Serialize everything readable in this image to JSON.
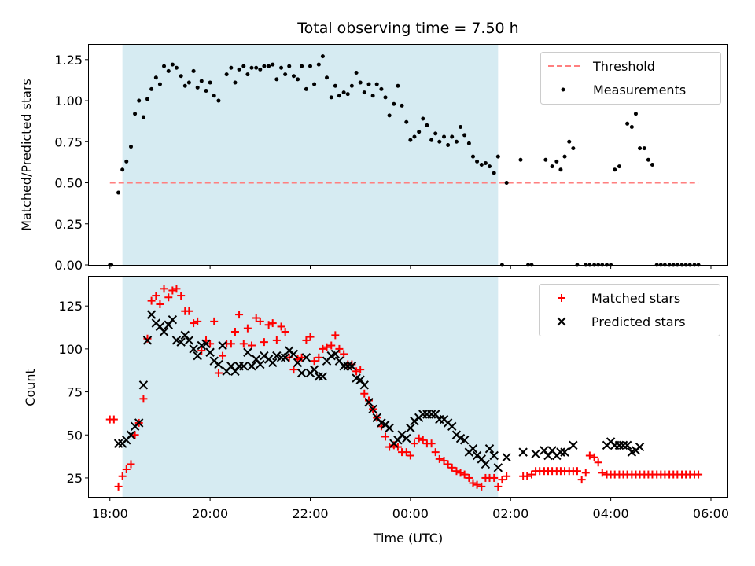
{
  "chart_data": [
    {
      "type": "scatter",
      "title": "Total observing time = 7.50 h",
      "xlabel": "",
      "ylabel": "Matched/Predicted stars",
      "ylim": [
        0,
        1.34
      ],
      "yticks": [
        "0.00",
        "0.25",
        "0.50",
        "0.75",
        "1.00",
        "1.25"
      ],
      "ytick_values": [
        0,
        0.25,
        0.5,
        0.75,
        1.0,
        1.25
      ],
      "observing_window": [
        18.25,
        25.75
      ],
      "shade_color": "#add8e6",
      "legend_position": "top-right",
      "threshold": {
        "name": "Threshold",
        "value": 0.5,
        "x_range": [
          18.0,
          29.75
        ],
        "color": "#ff7f7f"
      },
      "series": [
        {
          "name": "Measurements",
          "color": "#000000",
          "x": [
            18.0,
            18.03,
            18.17,
            18.25,
            18.33,
            18.42,
            18.5,
            18.58,
            18.67,
            18.75,
            18.83,
            18.92,
            19.0,
            19.08,
            19.17,
            19.25,
            19.33,
            19.42,
            19.5,
            19.58,
            19.67,
            19.75,
            19.83,
            19.92,
            20.0,
            20.08,
            20.17,
            20.33,
            20.42,
            20.5,
            20.58,
            20.67,
            20.75,
            20.83,
            20.92,
            21.0,
            21.08,
            21.17,
            21.25,
            21.33,
            21.42,
            21.5,
            21.58,
            21.67,
            21.75,
            21.83,
            21.92,
            22.0,
            22.08,
            22.17,
            22.25,
            22.33,
            22.42,
            22.5,
            22.58,
            22.67,
            22.75,
            22.83,
            22.92,
            23.0,
            23.08,
            23.17,
            23.25,
            23.33,
            23.42,
            23.5,
            23.58,
            23.67,
            23.75,
            23.83,
            23.92,
            24.0,
            24.08,
            24.17,
            24.25,
            24.33,
            24.42,
            24.5,
            24.58,
            24.67,
            24.75,
            24.83,
            24.92,
            25.0,
            25.08,
            25.17,
            25.25,
            25.33,
            25.42,
            25.5,
            25.58,
            25.67,
            25.75,
            25.83,
            25.92,
            26.2,
            26.35,
            26.42,
            26.7,
            26.83,
            26.92,
            27.0,
            27.08,
            27.17,
            27.25,
            27.33,
            27.5,
            27.58,
            27.67,
            27.75,
            27.83,
            27.92,
            28.0,
            28.08,
            28.17,
            28.33,
            28.42,
            28.5,
            28.58,
            28.67,
            28.75,
            28.83,
            28.92,
            29.0,
            29.08,
            29.17,
            29.25,
            29.33,
            29.42,
            29.5,
            29.58,
            29.67,
            29.75
          ],
          "y": [
            0.0,
            0.0,
            0.44,
            0.58,
            0.63,
            0.72,
            0.92,
            1.0,
            0.9,
            1.01,
            1.07,
            1.14,
            1.1,
            1.21,
            1.18,
            1.22,
            1.2,
            1.15,
            1.09,
            1.11,
            1.18,
            1.08,
            1.12,
            1.06,
            1.11,
            1.03,
            1.0,
            1.16,
            1.2,
            1.11,
            1.19,
            1.21,
            1.16,
            1.2,
            1.2,
            1.19,
            1.21,
            1.21,
            1.22,
            1.13,
            1.2,
            1.16,
            1.21,
            1.15,
            1.13,
            1.21,
            1.07,
            1.21,
            1.1,
            1.22,
            1.27,
            1.14,
            1.02,
            1.09,
            1.03,
            1.05,
            1.04,
            1.09,
            1.17,
            1.11,
            1.05,
            1.1,
            1.03,
            1.1,
            1.07,
            1.02,
            0.91,
            0.98,
            1.09,
            0.97,
            0.87,
            0.76,
            0.78,
            0.81,
            0.89,
            0.85,
            0.76,
            0.8,
            0.75,
            0.78,
            0.73,
            0.78,
            0.75,
            0.84,
            0.79,
            0.74,
            0.66,
            0.63,
            0.61,
            0.62,
            0.6,
            0.56,
            0.66,
            0.0,
            0.5,
            0.64,
            0.0,
            0.0,
            0.64,
            0.6,
            0.63,
            0.58,
            0.66,
            0.75,
            0.71,
            0.0,
            0.0,
            0.0,
            0.0,
            0.0,
            0.0,
            0.0,
            0.0,
            0.58,
            0.6,
            0.86,
            0.84,
            0.92,
            0.71,
            0.71,
            0.64,
            0.61,
            0.0,
            0.0,
            0.0,
            0.0,
            0.0,
            0.0,
            0.0,
            0.0,
            0.0,
            0.0,
            0.0
          ]
        }
      ],
      "legend": [
        "Threshold",
        "Measurements"
      ]
    },
    {
      "type": "scatter",
      "title": "",
      "xlabel": "Time (UTC)",
      "ylabel": "Count",
      "ylim": [
        14,
        142
      ],
      "yticks": [
        "25",
        "50",
        "75",
        "100",
        "125"
      ],
      "ytick_values": [
        25,
        50,
        75,
        100,
        125
      ],
      "xlim": [
        17.58,
        30.33
      ],
      "xticks": [
        "18:00",
        "20:00",
        "22:00",
        "00:00",
        "02:00",
        "04:00",
        "06:00"
      ],
      "xtick_values": [
        18,
        20,
        22,
        24,
        26,
        28,
        30
      ],
      "observing_window": [
        18.25,
        25.75
      ],
      "shade_color": "#add8e6",
      "legend_position": "top-right",
      "series": [
        {
          "name": "Matched stars",
          "marker": "+",
          "color": "#ff0000",
          "x": [
            18.0,
            18.08,
            18.17,
            18.25,
            18.33,
            18.42,
            18.5,
            18.58,
            18.67,
            18.75,
            18.83,
            18.92,
            19.0,
            19.08,
            19.17,
            19.25,
            19.33,
            19.42,
            19.5,
            19.58,
            19.67,
            19.75,
            19.83,
            19.92,
            20.0,
            20.08,
            20.17,
            20.25,
            20.33,
            20.42,
            20.5,
            20.58,
            20.67,
            20.75,
            20.83,
            20.92,
            21.0,
            21.08,
            21.17,
            21.25,
            21.33,
            21.42,
            21.5,
            21.58,
            21.67,
            21.75,
            21.83,
            21.92,
            22.0,
            22.08,
            22.17,
            22.25,
            22.33,
            22.42,
            22.5,
            22.58,
            22.67,
            22.75,
            22.83,
            22.92,
            23.0,
            23.08,
            23.17,
            23.25,
            23.33,
            23.42,
            23.5,
            23.58,
            23.67,
            23.75,
            23.83,
            23.92,
            24.0,
            24.08,
            24.17,
            24.25,
            24.33,
            24.42,
            24.5,
            24.58,
            24.67,
            24.75,
            24.83,
            24.92,
            25.0,
            25.08,
            25.17,
            25.25,
            25.33,
            25.42,
            25.5,
            25.58,
            25.67,
            25.75,
            25.83,
            25.92,
            26.25,
            26.33,
            26.42,
            26.5,
            26.58,
            26.67,
            26.75,
            26.83,
            26.92,
            27.0,
            27.08,
            27.17,
            27.25,
            27.33,
            27.42,
            27.5,
            27.58,
            27.67,
            27.75,
            27.83,
            27.92,
            28.0,
            28.08,
            28.17,
            28.25,
            28.33,
            28.42,
            28.5,
            28.58,
            28.67,
            28.75,
            28.83,
            28.92,
            29.0,
            29.08,
            29.17,
            29.25,
            29.33,
            29.42,
            29.5,
            29.58,
            29.67,
            29.75
          ],
          "y": [
            59,
            59,
            20,
            26,
            30,
            33,
            50,
            57,
            71,
            106,
            128,
            131,
            126,
            135,
            130,
            134,
            135,
            131,
            122,
            122,
            115,
            116,
            99,
            105,
            103,
            116,
            86,
            96,
            103,
            103,
            110,
            120,
            103,
            112,
            102,
            118,
            116,
            104,
            114,
            115,
            105,
            113,
            110,
            95,
            88,
            94,
            95,
            105,
            107,
            93,
            95,
            100,
            101,
            102,
            108,
            100,
            97,
            91,
            91,
            87,
            88,
            74,
            70,
            65,
            60,
            55,
            49,
            43,
            44,
            43,
            40,
            40,
            38,
            45,
            48,
            47,
            45,
            45,
            40,
            36,
            35,
            33,
            31,
            29,
            28,
            27,
            25,
            22,
            21,
            20,
            25,
            25,
            25,
            20,
            24,
            26,
            26,
            26,
            27,
            29,
            29,
            29,
            29,
            29,
            29,
            29,
            29,
            29,
            29,
            29,
            24,
            28,
            38,
            37,
            34,
            28,
            27,
            27,
            27,
            27,
            27,
            27,
            27,
            27,
            27,
            27,
            27,
            27,
            27,
            27,
            27,
            27,
            27,
            27,
            27,
            27,
            27,
            27,
            27
          ]
        },
        {
          "name": "Predicted stars",
          "marker": "x",
          "color": "#000000",
          "x": [
            18.17,
            18.25,
            18.33,
            18.42,
            18.5,
            18.58,
            18.67,
            18.75,
            18.83,
            18.92,
            19.0,
            19.08,
            19.17,
            19.25,
            19.33,
            19.42,
            19.5,
            19.58,
            19.67,
            19.75,
            19.83,
            19.92,
            20.0,
            20.08,
            20.17,
            20.25,
            20.33,
            20.42,
            20.5,
            20.58,
            20.67,
            20.75,
            20.83,
            20.92,
            21.0,
            21.08,
            21.17,
            21.25,
            21.33,
            21.42,
            21.5,
            21.58,
            21.67,
            21.75,
            21.83,
            21.92,
            22.0,
            22.08,
            22.17,
            22.25,
            22.33,
            22.42,
            22.5,
            22.58,
            22.67,
            22.75,
            22.83,
            22.92,
            23.0,
            23.08,
            23.17,
            23.25,
            23.33,
            23.42,
            23.5,
            23.58,
            23.67,
            23.75,
            23.83,
            23.92,
            24.0,
            24.08,
            24.17,
            24.25,
            24.33,
            24.42,
            24.5,
            24.58,
            24.67,
            24.75,
            24.83,
            24.92,
            25.0,
            25.08,
            25.17,
            25.25,
            25.33,
            25.42,
            25.5,
            25.58,
            25.67,
            25.75,
            25.92,
            26.25,
            26.5,
            26.67,
            26.75,
            26.83,
            26.92,
            27.0,
            27.08,
            27.25,
            27.92,
            28.0,
            28.08,
            28.17,
            28.25,
            28.33,
            28.42,
            28.5,
            28.58
          ],
          "y": [
            45,
            45,
            47,
            50,
            55,
            57,
            79,
            105,
            120,
            115,
            113,
            110,
            114,
            117,
            105,
            104,
            108,
            105,
            100,
            96,
            102,
            103,
            98,
            93,
            91,
            102,
            87,
            90,
            87,
            90,
            90,
            98,
            90,
            94,
            91,
            96,
            94,
            92,
            96,
            95,
            95,
            99,
            97,
            92,
            86,
            95,
            86,
            88,
            84,
            84,
            93,
            96,
            97,
            93,
            90,
            90,
            90,
            83,
            82,
            79,
            69,
            65,
            60,
            57,
            56,
            54,
            45,
            47,
            50,
            48,
            54,
            58,
            60,
            62,
            62,
            62,
            62,
            59,
            59,
            57,
            55,
            50,
            48,
            47,
            40,
            42,
            38,
            36,
            33,
            42,
            38,
            31,
            37,
            40,
            39,
            41,
            38,
            41,
            38,
            40,
            40,
            44,
            44,
            46,
            44,
            44,
            44,
            44,
            40,
            41,
            43
          ]
        }
      ],
      "legend": [
        "Matched stars",
        "Predicted stars"
      ]
    }
  ]
}
